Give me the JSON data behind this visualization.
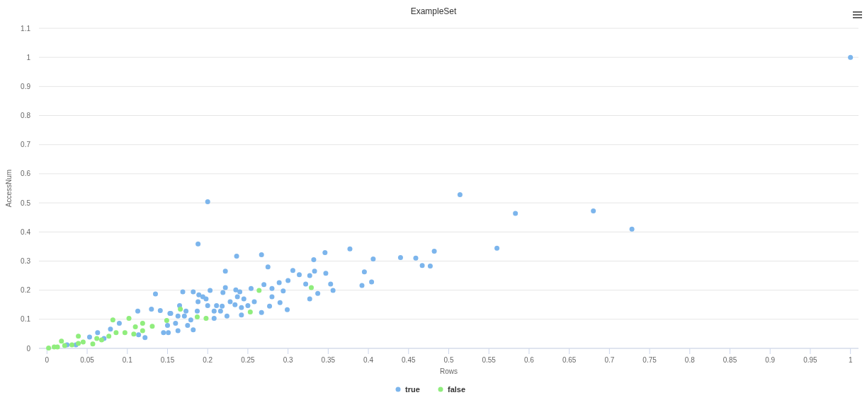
{
  "chart_data": {
    "type": "scatter",
    "title": "ExampleSet",
    "xlabel": "Rows",
    "ylabel": "AccessNum",
    "xlim": [
      -0.01,
      1.01
    ],
    "ylim": [
      0,
      1.1
    ],
    "xticks": [
      0,
      0.05,
      0.1,
      0.15,
      0.2,
      0.25,
      0.3,
      0.35,
      0.4,
      0.45,
      0.5,
      0.55,
      0.6,
      0.65,
      0.7,
      0.75,
      0.8,
      0.85,
      0.9,
      0.95,
      1
    ],
    "yticks": [
      0,
      0.1,
      0.2,
      0.3,
      0.4,
      0.5,
      0.6,
      0.7,
      0.8,
      0.9,
      1,
      1.1
    ],
    "grid": "y",
    "legend": "bottom",
    "marker": "circle",
    "series": [
      {
        "name": "true",
        "color": "#7cb5ec",
        "x": [
          1.0,
          0.514,
          0.583,
          0.68,
          0.728,
          0.56,
          0.482,
          0.459,
          0.44,
          0.467,
          0.477,
          0.377,
          0.406,
          0.395,
          0.404,
          0.392,
          0.2,
          0.188,
          0.236,
          0.267,
          0.222,
          0.275,
          0.346,
          0.332,
          0.306,
          0.314,
          0.333,
          0.347,
          0.327,
          0.289,
          0.27,
          0.322,
          0.353,
          0.356,
          0.337,
          0.327,
          0.3,
          0.294,
          0.28,
          0.28,
          0.29,
          0.299,
          0.277,
          0.267,
          0.254,
          0.245,
          0.258,
          0.25,
          0.242,
          0.242,
          0.237,
          0.235,
          0.24,
          0.228,
          0.234,
          0.224,
          0.222,
          0.219,
          0.218,
          0.216,
          0.211,
          0.208,
          0.208,
          0.203,
          0.198,
          0.2,
          0.194,
          0.189,
          0.188,
          0.187,
          0.182,
          0.169,
          0.173,
          0.171,
          0.179,
          0.175,
          0.182,
          0.163,
          0.16,
          0.151,
          0.154,
          0.165,
          0.163,
          0.135,
          0.13,
          0.113,
          0.09,
          0.079,
          0.063,
          0.053,
          0.122,
          0.114,
          0.141,
          0.153,
          0.145,
          0.15,
          0.036,
          0.025,
          0.071
        ],
        "values": [
          1.0,
          0.528,
          0.464,
          0.472,
          0.41,
          0.344,
          0.334,
          0.31,
          0.312,
          0.285,
          0.283,
          0.342,
          0.307,
          0.263,
          0.228,
          0.216,
          0.504,
          0.359,
          0.317,
          0.322,
          0.265,
          0.28,
          0.329,
          0.305,
          0.268,
          0.253,
          0.265,
          0.258,
          0.25,
          0.226,
          0.219,
          0.221,
          0.221,
          0.199,
          0.189,
          0.17,
          0.233,
          0.197,
          0.206,
          0.177,
          0.157,
          0.133,
          0.145,
          0.123,
          0.206,
          0.17,
          0.16,
          0.147,
          0.14,
          0.115,
          0.177,
          0.201,
          0.194,
          0.16,
          0.15,
          0.111,
          0.209,
          0.192,
          0.145,
          0.128,
          0.147,
          0.128,
          0.103,
          0.199,
          0.17,
          0.147,
          0.177,
          0.184,
          0.16,
          0.128,
          0.194,
          0.194,
          0.128,
          0.111,
          0.098,
          0.079,
          0.064,
          0.061,
          0.086,
          0.054,
          0.12,
          0.147,
          0.111,
          0.187,
          0.135,
          0.128,
          0.086,
          0.066,
          0.054,
          0.039,
          0.037,
          0.047,
          0.13,
          0.12,
          0.054,
          0.079,
          0.012,
          0.012,
          0.034
        ]
      },
      {
        "name": "false",
        "color": "#90ed7d",
        "x": [
          0.264,
          0.329,
          0.253,
          0.166,
          0.187,
          0.198,
          0.082,
          0.102,
          0.11,
          0.119,
          0.119,
          0.131,
          0.149,
          0.108,
          0.097,
          0.086,
          0.077,
          0.062,
          0.057,
          0.039,
          0.039,
          0.031,
          0.018,
          0.013,
          0.002,
          0.009,
          0.022,
          0.045,
          0.068
        ],
        "values": [
          0.199,
          0.209,
          0.125,
          0.135,
          0.108,
          0.103,
          0.098,
          0.103,
          0.074,
          0.086,
          0.061,
          0.076,
          0.096,
          0.049,
          0.054,
          0.054,
          0.042,
          0.034,
          0.015,
          0.042,
          0.017,
          0.012,
          0.025,
          0.005,
          0.001,
          0.005,
          0.01,
          0.022,
          0.029
        ]
      }
    ]
  }
}
